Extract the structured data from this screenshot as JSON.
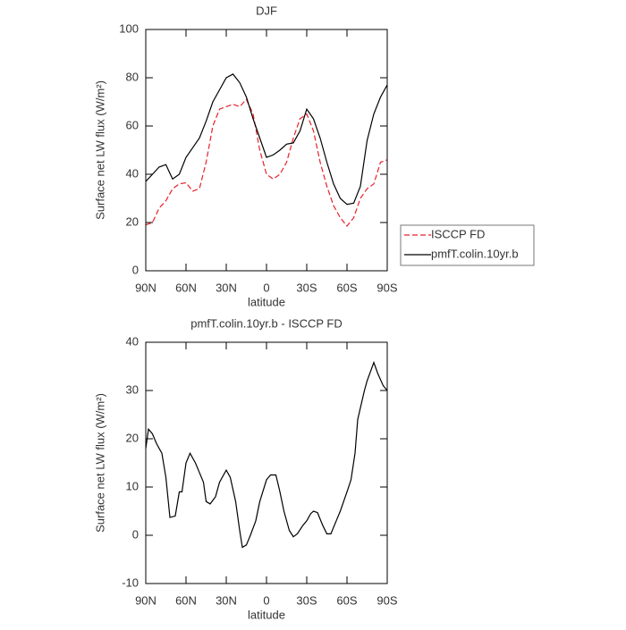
{
  "chart_data": [
    {
      "type": "line",
      "title": "DJF",
      "x_label": "latitude",
      "y_label": "Surface net LW flux (W/m²)",
      "x": [
        90,
        85,
        80,
        75,
        70,
        65,
        60,
        55,
        50,
        45,
        40,
        35,
        30,
        25,
        20,
        15,
        10,
        5,
        0,
        -5,
        -10,
        -15,
        -20,
        -25,
        -30,
        -35,
        -40,
        -45,
        -50,
        -55,
        -60,
        -65,
        -70,
        -75,
        -80,
        -85,
        -90
      ],
      "series": [
        {
          "name": "ISCCP FD",
          "color": "#e8202a",
          "dash": true,
          "values": [
            19,
            20,
            26,
            29,
            34,
            36,
            36.5,
            33,
            34,
            45,
            60,
            67,
            68,
            69,
            68,
            71,
            65,
            50,
            40,
            38,
            40,
            45,
            55,
            63,
            65,
            58,
            45,
            35,
            27,
            22,
            18.5,
            22,
            30,
            34,
            36,
            45,
            46
          ]
        },
        {
          "name": "pmfT.colin.10yr.b",
          "color": "#000000",
          "dash": false,
          "values": [
            37,
            40,
            43,
            44,
            38,
            40,
            47,
            51,
            55,
            62,
            70,
            75,
            80,
            81.5,
            78,
            72,
            63,
            55,
            47,
            48,
            50,
            52.5,
            53,
            58,
            67,
            63,
            55,
            45,
            36,
            30,
            27.5,
            28,
            35,
            54,
            65,
            72,
            77
          ]
        }
      ],
      "xlim": [
        90,
        -90
      ],
      "xticks": [
        {
          "value": 90,
          "label": "90N"
        },
        {
          "value": 60,
          "label": "60N"
        },
        {
          "value": 30,
          "label": "30N"
        },
        0,
        {
          "value": -30,
          "label": "30S"
        },
        {
          "value": -60,
          "label": "60S"
        },
        {
          "value": -90,
          "label": "90S"
        }
      ],
      "ylim": [
        0,
        100
      ],
      "yticks": [
        0,
        20,
        40,
        60,
        80,
        100
      ],
      "legend": "right"
    },
    {
      "type": "line",
      "title": "pmfT.colin.10yr.b - ISCCP FD",
      "x_label": "latitude",
      "y_label": "Surface net LW flux (W/m²)",
      "x": [
        90,
        88,
        85,
        82,
        78,
        75,
        72,
        68,
        65,
        63,
        60,
        57,
        53,
        50,
        47,
        45,
        42,
        38,
        35,
        30,
        27,
        23,
        20,
        18,
        15,
        12,
        8,
        5,
        0,
        -3,
        -7,
        -10,
        -13,
        -17,
        -20,
        -23,
        -27,
        -30,
        -33,
        -35,
        -38,
        -42,
        -45,
        -48,
        -52,
        -55,
        -60,
        -63,
        -66,
        -68,
        -73,
        -75,
        -80,
        -83,
        -87,
        -90
      ],
      "series": [
        {
          "color": "#000000",
          "dash": false,
          "values": [
            18,
            22,
            21,
            19,
            17,
            12,
            3.7,
            4,
            9,
            9,
            15,
            17,
            15,
            13,
            11,
            7,
            6.5,
            8,
            11,
            13.5,
            12,
            7,
            1,
            -2.5,
            -2,
            0,
            3,
            7,
            11.5,
            12.5,
            12.5,
            9,
            5,
            1,
            -0.3,
            0.3,
            2,
            3,
            4.5,
            5,
            4.7,
            2,
            0.3,
            0.3,
            3,
            5,
            9,
            11.5,
            17,
            24,
            30,
            32,
            35.8,
            33.5,
            31,
            30
          ]
        }
      ],
      "xlim": [
        90,
        -90
      ],
      "xticks": [
        {
          "value": 90,
          "label": "90N"
        },
        {
          "value": 60,
          "label": "60N"
        },
        {
          "value": 30,
          "label": "30N"
        },
        0,
        {
          "value": -30,
          "label": "30S"
        },
        {
          "value": -60,
          "label": "60S"
        },
        {
          "value": -90,
          "label": "90S"
        }
      ],
      "ylim": [
        -10,
        40
      ],
      "yticks": [
        -10,
        0,
        10,
        20,
        30,
        40
      ]
    }
  ]
}
